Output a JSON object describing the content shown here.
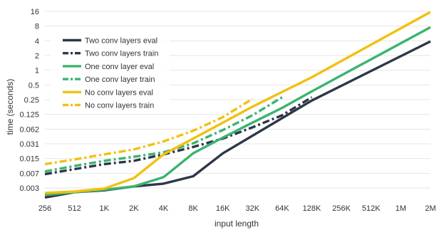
{
  "chart_data": {
    "type": "line",
    "title": "",
    "xlabel": "input length",
    "ylabel": "time (seconds)",
    "x_scale": "log2",
    "y_scale": "log2",
    "grid": "horizontal",
    "legend_position": "top-left",
    "categories": [
      "256",
      "512",
      "1K",
      "2K",
      "4K",
      "8K",
      "16K",
      "32K",
      "64K",
      "128K",
      "256K",
      "512K",
      "1M",
      "2M"
    ],
    "y_ticks": [
      "16",
      "8",
      "4",
      "2",
      "1",
      "0.5",
      "0.25",
      "0.125",
      "0.062",
      "0.031",
      "0.015",
      "0.007",
      "0.003"
    ],
    "y_tick_values": [
      16,
      8,
      4,
      2,
      1,
      0.5,
      0.25,
      0.125,
      0.0625,
      0.03125,
      0.015625,
      0.0078125,
      0.00390625
    ],
    "ylim": [
      0.0025,
      24
    ],
    "series": [
      {
        "name": "Two conv layers eval",
        "color": "#2d3748",
        "style": "solid",
        "points": [
          [
            256,
            0.0025
          ],
          [
            512,
            0.0032
          ],
          [
            1024,
            0.0035
          ],
          [
            2048,
            0.0042
          ],
          [
            4096,
            0.0048
          ],
          [
            8192,
            0.0068
          ],
          [
            16384,
            0.02
          ],
          [
            131072,
            0.24
          ],
          [
            2097152,
            3.9
          ]
        ]
      },
      {
        "name": "Two conv layers train",
        "color": "#2d3748",
        "style": "dashdot",
        "points": [
          [
            256,
            0.0075
          ],
          [
            512,
            0.0095
          ],
          [
            1024,
            0.012
          ],
          [
            2048,
            0.014
          ],
          [
            4096,
            0.019
          ],
          [
            8192,
            0.027
          ],
          [
            16384,
            0.04
          ],
          [
            32768,
            0.068
          ],
          [
            65536,
            0.12
          ],
          [
            131072,
            0.28
          ]
        ]
      },
      {
        "name": "One conv layer eval",
        "color": "#3cb371",
        "style": "solid",
        "points": [
          [
            256,
            0.0028
          ],
          [
            512,
            0.0032
          ],
          [
            1024,
            0.0036
          ],
          [
            2048,
            0.0042
          ],
          [
            4096,
            0.0065
          ],
          [
            8192,
            0.02
          ],
          [
            16384,
            0.042
          ],
          [
            32768,
            0.085
          ],
          [
            65536,
            0.17
          ],
          [
            131072,
            0.37
          ],
          [
            2097152,
            7.6
          ]
        ]
      },
      {
        "name": "One conv layer train",
        "color": "#3cb371",
        "style": "dashdot",
        "points": [
          [
            256,
            0.0085
          ],
          [
            512,
            0.011
          ],
          [
            1024,
            0.014
          ],
          [
            2048,
            0.017
          ],
          [
            4096,
            0.021
          ],
          [
            8192,
            0.032
          ],
          [
            16384,
            0.06
          ],
          [
            32768,
            0.12
          ],
          [
            65536,
            0.28
          ]
        ]
      },
      {
        "name": "No conv layers eval",
        "color": "#f2c00f",
        "style": "solid",
        "points": [
          [
            256,
            0.0031
          ],
          [
            512,
            0.0033
          ],
          [
            1024,
            0.0038
          ],
          [
            2048,
            0.0062
          ],
          [
            4096,
            0.019
          ],
          [
            8192,
            0.04
          ],
          [
            16384,
            0.085
          ],
          [
            32768,
            0.18
          ],
          [
            65536,
            0.36
          ],
          [
            131072,
            0.72
          ],
          [
            2097152,
            15.5
          ]
        ]
      },
      {
        "name": "No conv layers train",
        "color": "#f2c00f",
        "style": "dashdot",
        "points": [
          [
            256,
            0.012
          ],
          [
            512,
            0.015
          ],
          [
            1024,
            0.019
          ],
          [
            2048,
            0.024
          ],
          [
            4096,
            0.035
          ],
          [
            8192,
            0.058
          ],
          [
            16384,
            0.11
          ],
          [
            32768,
            0.26
          ]
        ]
      }
    ]
  }
}
